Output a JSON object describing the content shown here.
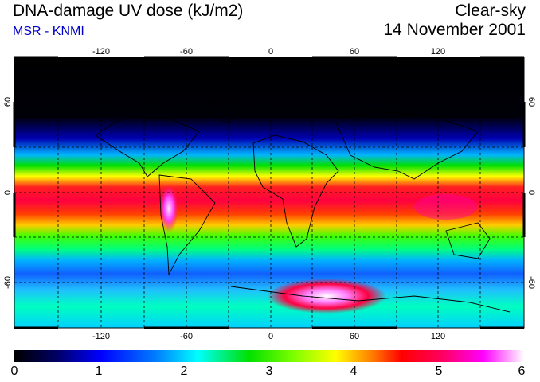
{
  "header": {
    "title": "DNA-damage UV dose (kJ/m2)",
    "subtitle": "MSR - KNMI",
    "sky_condition": "Clear-sky",
    "date": "14 November 2001"
  },
  "map": {
    "projection": "equirectangular",
    "lon_ticks": [
      "-120",
      "-60",
      "0",
      "60",
      "120"
    ],
    "lat_ticks": [
      "60",
      "0",
      "-60"
    ],
    "gridlines": "dashed every 30 degrees"
  },
  "colorbar": {
    "labels": [
      "0",
      "1",
      "2",
      "3",
      "4",
      "5",
      "6"
    ],
    "range": [
      0,
      6
    ],
    "colors": [
      "#000000",
      "#0000a0",
      "#0000ff",
      "#00b4ff",
      "#00ffff",
      "#00e000",
      "#80ff00",
      "#ffff00",
      "#ff8000",
      "#ff0000",
      "#ff0060",
      "#ff00ff",
      "#ffa0ff",
      "#ffffff"
    ]
  }
}
